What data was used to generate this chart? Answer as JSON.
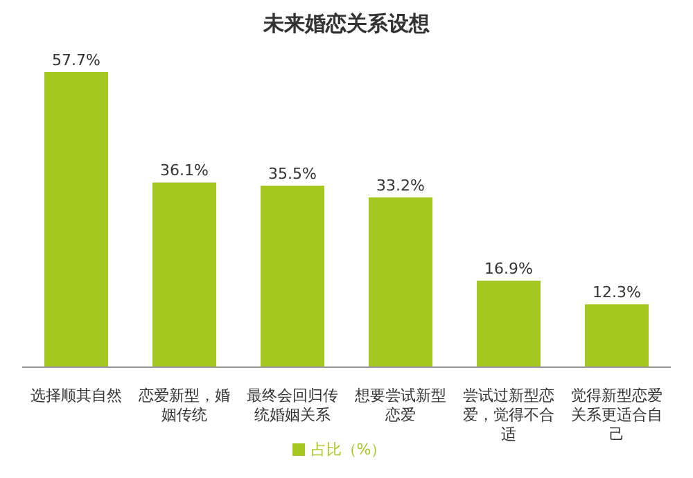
{
  "chart_data": {
    "type": "bar",
    "title": "未来婚恋关系设想",
    "categories": [
      "选择顺其自然",
      "恋爱新型，婚姻传统",
      "最终会回归传统婚姻关系",
      "想要尝试新型恋爱",
      "尝试过新型恋爱，觉得不合适",
      "觉得新型恋爱关系更适合自己"
    ],
    "series": [
      {
        "name": "占比（%）",
        "color": "#a5c820",
        "values": [
          57.7,
          36.1,
          35.5,
          33.2,
          16.9,
          12.3
        ],
        "value_labels": [
          "57.7%",
          "36.1%",
          "35.5%",
          "33.2%",
          "16.9%",
          "12.3%"
        ]
      }
    ],
    "legend": "bottom",
    "grid": false,
    "tick_labels": "x"
  }
}
